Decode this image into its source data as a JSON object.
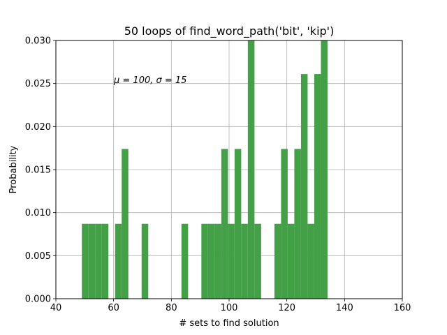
{
  "chart_data": {
    "type": "bar",
    "title": "50 loops of find_word_path('bit', 'kip')",
    "xlabel": "# sets to find solution",
    "ylabel": "Probability",
    "annotation": "μ = 100,  σ = 15",
    "xlim": [
      40,
      160
    ],
    "ylim": [
      0,
      0.03
    ],
    "xticks": [
      "40",
      "60",
      "80",
      "100",
      "120",
      "140",
      "160"
    ],
    "yticks": [
      "0.000",
      "0.005",
      "0.010",
      "0.015",
      "0.020",
      "0.025",
      "0.030"
    ],
    "grid": true,
    "bar_color": "#43a047",
    "bins": [
      {
        "x0": 49.0,
        "x1": 51.3,
        "value": 0.0087
      },
      {
        "x0": 51.3,
        "x1": 53.6,
        "value": 0.0087
      },
      {
        "x0": 53.6,
        "x1": 55.9,
        "value": 0.0087
      },
      {
        "x0": 55.9,
        "x1": 58.2,
        "value": 0.0087
      },
      {
        "x0": 60.5,
        "x1": 62.8,
        "value": 0.0087
      },
      {
        "x0": 62.8,
        "x1": 65.1,
        "value": 0.0174
      },
      {
        "x0": 69.7,
        "x1": 72.0,
        "value": 0.0087
      },
      {
        "x0": 83.5,
        "x1": 85.8,
        "value": 0.0087
      },
      {
        "x0": 90.4,
        "x1": 92.7,
        "value": 0.0087
      },
      {
        "x0": 92.7,
        "x1": 95.0,
        "value": 0.0087
      },
      {
        "x0": 95.0,
        "x1": 97.3,
        "value": 0.0087
      },
      {
        "x0": 97.3,
        "x1": 99.6,
        "value": 0.0174
      },
      {
        "x0": 99.6,
        "x1": 101.9,
        "value": 0.0087
      },
      {
        "x0": 101.9,
        "x1": 104.2,
        "value": 0.0174
      },
      {
        "x0": 104.2,
        "x1": 106.5,
        "value": 0.0087
      },
      {
        "x0": 106.5,
        "x1": 108.8,
        "value": 0.03
      },
      {
        "x0": 108.8,
        "x1": 111.1,
        "value": 0.0087
      },
      {
        "x0": 115.7,
        "x1": 118.0,
        "value": 0.0087
      },
      {
        "x0": 118.0,
        "x1": 120.3,
        "value": 0.0174
      },
      {
        "x0": 120.3,
        "x1": 122.6,
        "value": 0.0087
      },
      {
        "x0": 122.6,
        "x1": 124.9,
        "value": 0.0174
      },
      {
        "x0": 124.9,
        "x1": 127.2,
        "value": 0.0261
      },
      {
        "x0": 127.2,
        "x1": 129.5,
        "value": 0.0087
      },
      {
        "x0": 129.5,
        "x1": 131.8,
        "value": 0.0261
      },
      {
        "x0": 131.8,
        "x1": 134.1,
        "value": 0.03
      }
    ]
  }
}
